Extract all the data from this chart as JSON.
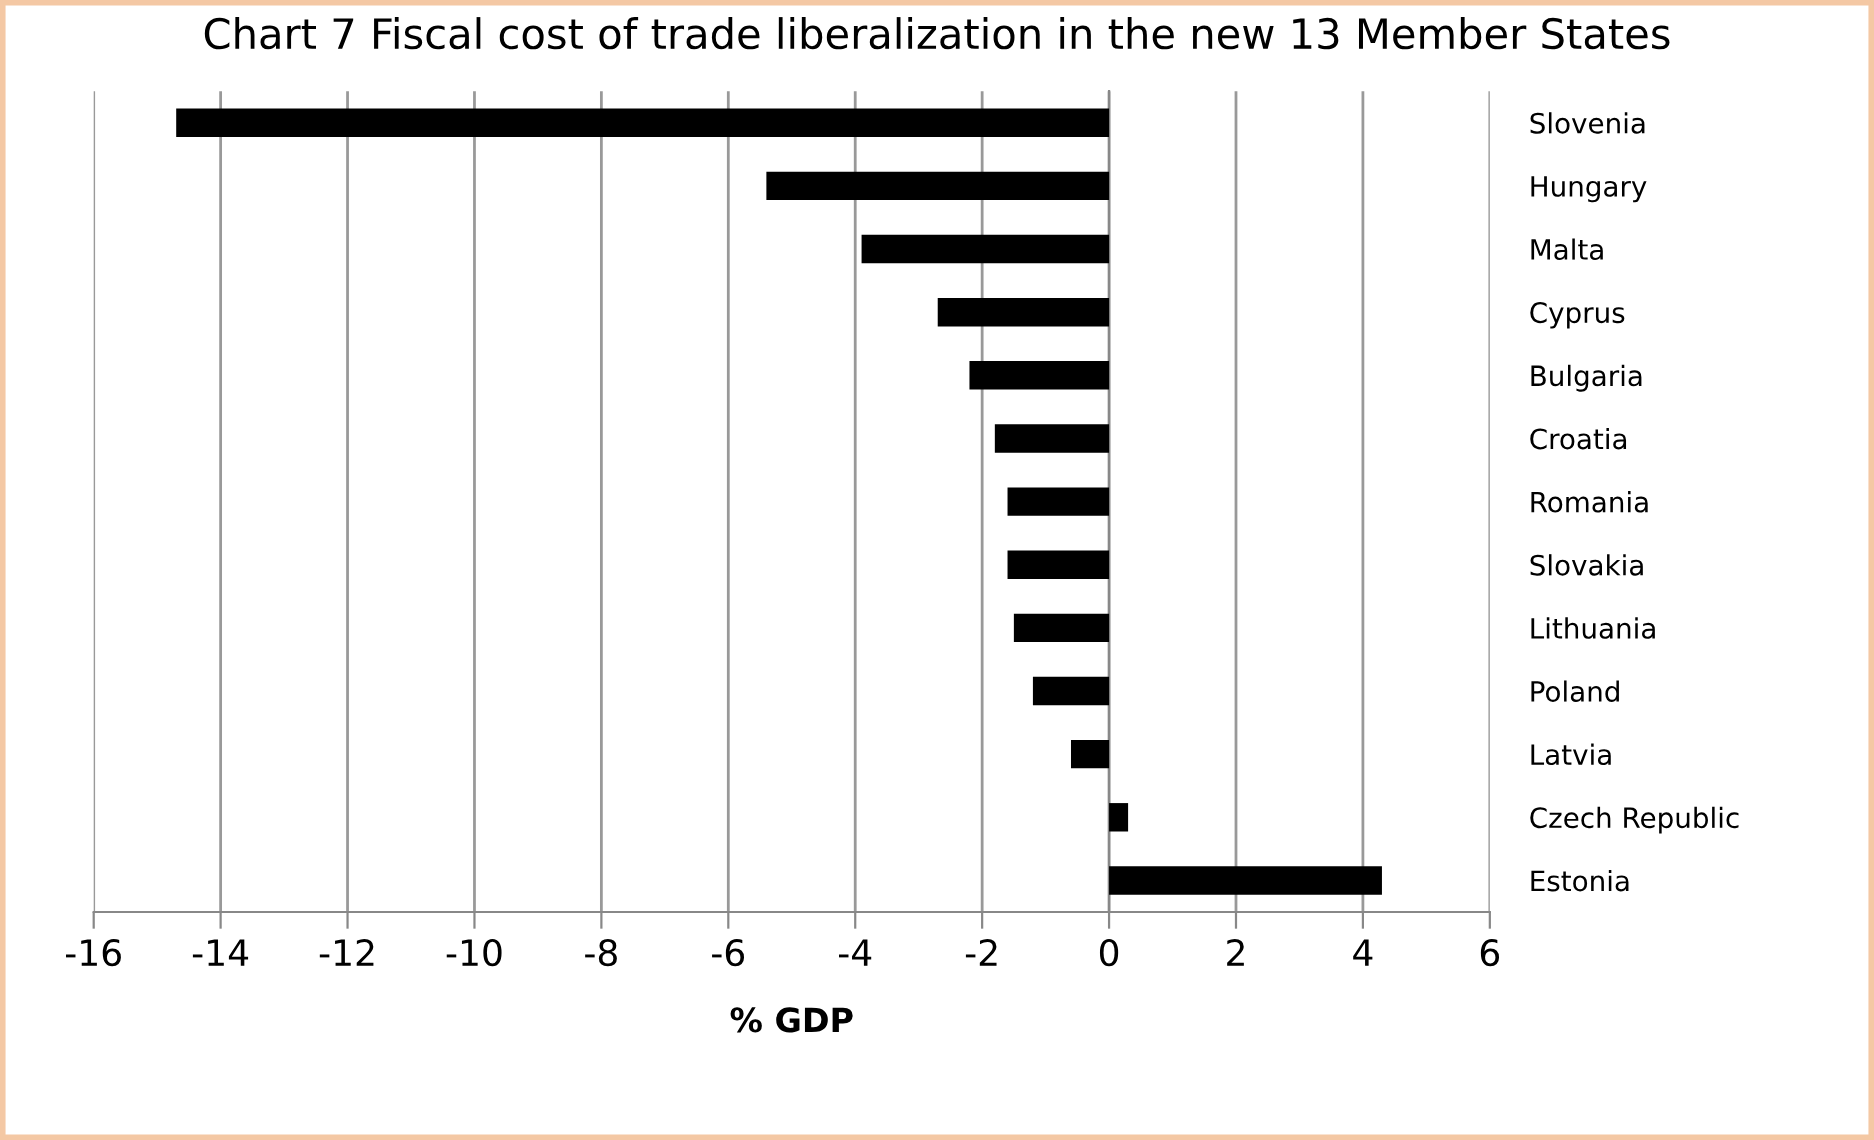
{
  "chart_data": {
    "type": "bar",
    "orientation": "horizontal",
    "title": "Chart 7 Fiscal cost of trade liberalization in the new 13 Member States",
    "xlabel": "% GDP",
    "categories": [
      "Slovenia",
      "Hungary",
      "Malta",
      "Cyprus",
      "Bulgaria",
      "Croatia",
      "Romania",
      "Slovakia",
      "Lithuania",
      "Poland",
      "Latvia",
      "Czech Republic",
      "Estonia"
    ],
    "values": [
      -14.7,
      -5.4,
      -3.9,
      -2.7,
      -2.2,
      -1.8,
      -1.6,
      -1.6,
      -1.5,
      -1.2,
      -0.6,
      0.3,
      4.3
    ],
    "color": "#000000",
    "xlim": [
      -16,
      6
    ],
    "xticks": [
      -16,
      -14,
      -12,
      -10,
      -8,
      -6,
      -4,
      -2,
      0,
      2,
      4,
      6
    ],
    "grid": "x"
  }
}
